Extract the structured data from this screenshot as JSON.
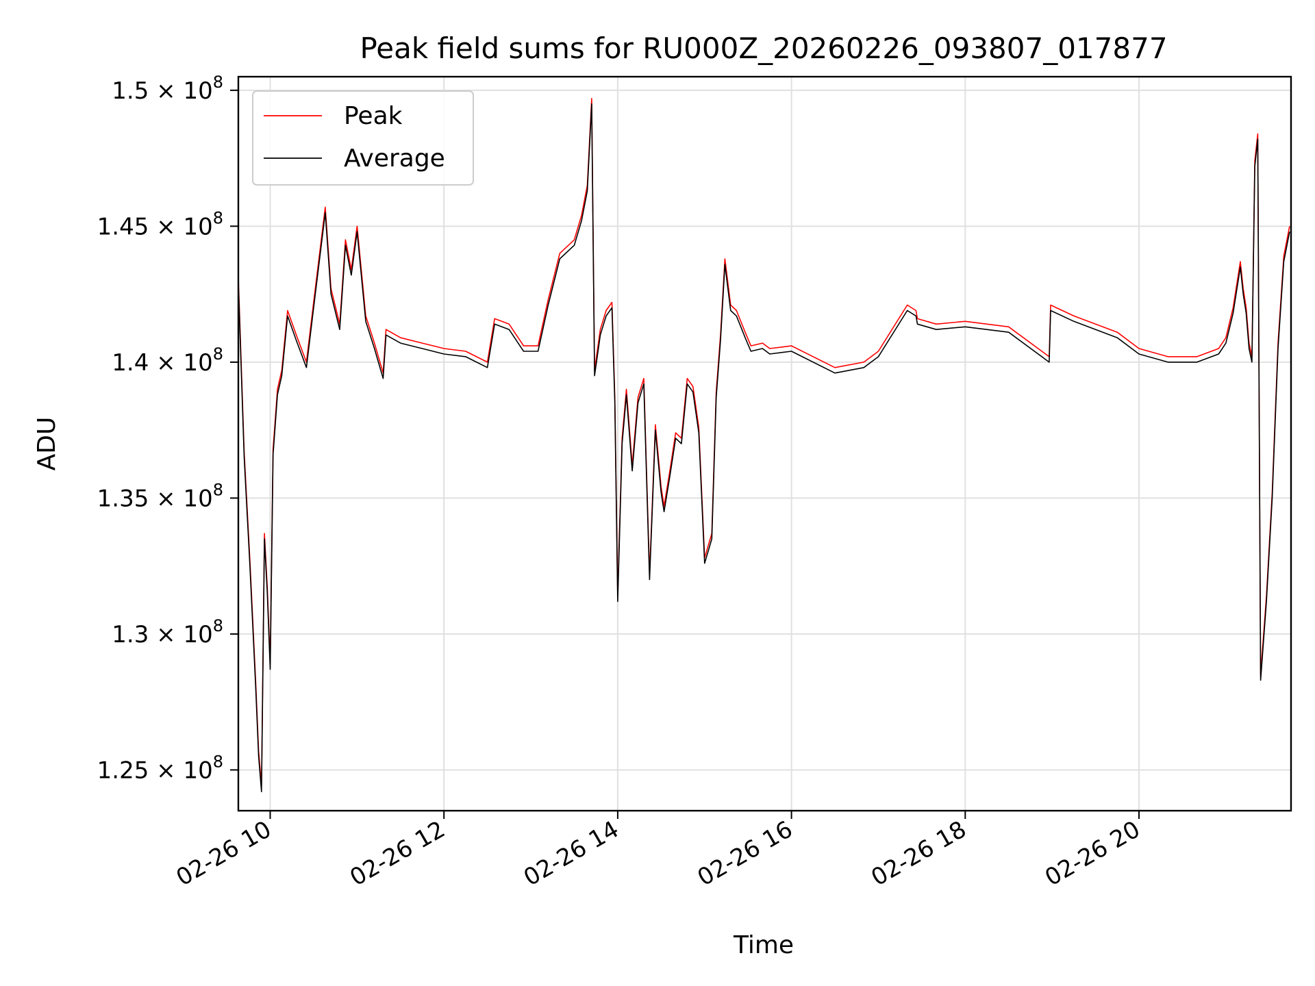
{
  "chart_data": {
    "type": "line",
    "title": "Peak field sums for RU000Z_20260226_093807_017877",
    "xlabel": "Time",
    "ylabel": "ADU",
    "xlim": [
      "2026-02-26T09:38",
      "2026-02-26T21:45"
    ],
    "ylim": [
      123500000,
      150500000
    ],
    "grid": true,
    "legend_position": "upper left",
    "x_ticks": [
      {
        "value": "2026-02-26T10:00",
        "label": "02-26 10"
      },
      {
        "value": "2026-02-26T12:00",
        "label": "02-26 12"
      },
      {
        "value": "2026-02-26T14:00",
        "label": "02-26 14"
      },
      {
        "value": "2026-02-26T16:00",
        "label": "02-26 16"
      },
      {
        "value": "2026-02-26T18:00",
        "label": "02-26 18"
      },
      {
        "value": "2026-02-26T20:00",
        "label": "02-26 20"
      }
    ],
    "y_ticks": [
      {
        "value": 125000000,
        "mantissa": "1.25"
      },
      {
        "value": 130000000,
        "mantissa": "1.3"
      },
      {
        "value": 135000000,
        "mantissa": "1.35"
      },
      {
        "value": 140000000,
        "mantissa": "1.4"
      },
      {
        "value": 145000000,
        "mantissa": "1.45"
      },
      {
        "value": 150000000,
        "mantissa": "1.5"
      }
    ],
    "y_tick_suffix": "× 10",
    "y_tick_exponent": "8",
    "series": [
      {
        "name": "Peak",
        "color": "#ff0000",
        "offset": 200000
      },
      {
        "name": "Average",
        "color": "#000000",
        "offset": 0
      }
    ],
    "x": [
      "2026-02-26T09:38",
      "2026-02-26T09:42",
      "2026-02-26T09:46",
      "2026-02-26T09:50",
      "2026-02-26T09:52",
      "2026-02-26T09:54",
      "2026-02-26T09:56",
      "2026-02-26T09:58",
      "2026-02-26T10:00",
      "2026-02-26T10:02",
      "2026-02-26T10:05",
      "2026-02-26T10:08",
      "2026-02-26T10:12",
      "2026-02-26T10:18",
      "2026-02-26T10:25",
      "2026-02-26T10:30",
      "2026-02-26T10:38",
      "2026-02-26T10:42",
      "2026-02-26T10:48",
      "2026-02-26T10:52",
      "2026-02-26T10:56",
      "2026-02-26T11:00",
      "2026-02-26T11:06",
      "2026-02-26T11:12",
      "2026-02-26T11:18",
      "2026-02-26T11:20",
      "2026-02-26T11:30",
      "2026-02-26T11:45",
      "2026-02-26T12:00",
      "2026-02-26T12:15",
      "2026-02-26T12:30",
      "2026-02-26T12:35",
      "2026-02-26T12:45",
      "2026-02-26T12:55",
      "2026-02-26T13:05",
      "2026-02-26T13:12",
      "2026-02-26T13:20",
      "2026-02-26T13:30",
      "2026-02-26T13:35",
      "2026-02-26T13:39",
      "2026-02-26T13:42",
      "2026-02-26T13:44",
      "2026-02-26T13:48",
      "2026-02-26T13:52",
      "2026-02-26T13:56",
      "2026-02-26T13:58",
      "2026-02-26T14:00",
      "2026-02-26T14:03",
      "2026-02-26T14:06",
      "2026-02-26T14:10",
      "2026-02-26T14:14",
      "2026-02-26T14:18",
      "2026-02-26T14:22",
      "2026-02-26T14:26",
      "2026-02-26T14:30",
      "2026-02-26T14:32",
      "2026-02-26T14:36",
      "2026-02-26T14:40",
      "2026-02-26T14:44",
      "2026-02-26T14:48",
      "2026-02-26T14:52",
      "2026-02-26T14:56",
      "2026-02-26T15:00",
      "2026-02-26T15:05",
      "2026-02-26T15:08",
      "2026-02-26T15:11",
      "2026-02-26T15:14",
      "2026-02-26T15:18",
      "2026-02-26T15:22",
      "2026-02-26T15:28",
      "2026-02-26T15:32",
      "2026-02-26T15:40",
      "2026-02-26T15:45",
      "2026-02-26T16:00",
      "2026-02-26T16:30",
      "2026-02-26T16:50",
      "2026-02-26T17:00",
      "2026-02-26T17:20",
      "2026-02-26T17:26",
      "2026-02-26T17:27",
      "2026-02-26T17:40",
      "2026-02-26T18:00",
      "2026-02-26T18:30",
      "2026-02-26T18:58",
      "2026-02-26T18:59",
      "2026-02-26T19:15",
      "2026-02-26T19:45",
      "2026-02-26T20:00",
      "2026-02-26T20:20",
      "2026-02-26T20:40",
      "2026-02-26T20:55",
      "2026-02-26T21:00",
      "2026-02-26T21:05",
      "2026-02-26T21:10",
      "2026-02-26T21:12",
      "2026-02-26T21:14",
      "2026-02-26T21:16",
      "2026-02-26T21:18",
      "2026-02-26T21:20",
      "2026-02-26T21:22",
      "2026-02-26T21:24",
      "2026-02-26T21:28",
      "2026-02-26T21:32",
      "2026-02-26T21:36",
      "2026-02-26T21:40",
      "2026-02-26T21:44"
    ],
    "y": [
      142900000,
      136500000,
      132500000,
      128000000,
      125500000,
      124200000,
      133500000,
      131500000,
      128700000,
      136600000,
      138800000,
      139500000,
      141700000,
      140800000,
      139800000,
      142000000,
      145500000,
      142500000,
      141200000,
      144300000,
      143200000,
      144800000,
      141500000,
      140500000,
      139400000,
      141000000,
      140700000,
      140500000,
      140300000,
      140200000,
      139800000,
      141400000,
      141200000,
      140400000,
      140400000,
      142100000,
      143800000,
      144300000,
      145200000,
      146300000,
      149500000,
      139500000,
      141000000,
      141700000,
      142000000,
      138500000,
      131200000,
      137000000,
      138800000,
      136000000,
      138500000,
      139200000,
      132000000,
      137500000,
      135200000,
      134500000,
      135800000,
      137200000,
      137000000,
      139200000,
      138900000,
      137400000,
      132600000,
      133500000,
      138700000,
      140800000,
      143600000,
      141900000,
      141700000,
      140900000,
      140400000,
      140500000,
      140300000,
      140400000,
      139600000,
      139800000,
      140200000,
      141900000,
      141700000,
      141400000,
      141200000,
      141300000,
      141100000,
      140000000,
      141900000,
      141500000,
      140900000,
      140300000,
      140000000,
      140000000,
      140300000,
      140700000,
      141800000,
      143500000,
      142500000,
      141800000,
      140500000,
      140000000,
      147200000,
      148200000,
      128300000,
      131200000,
      135000000,
      140500000,
      143700000,
      144800000
    ]
  }
}
